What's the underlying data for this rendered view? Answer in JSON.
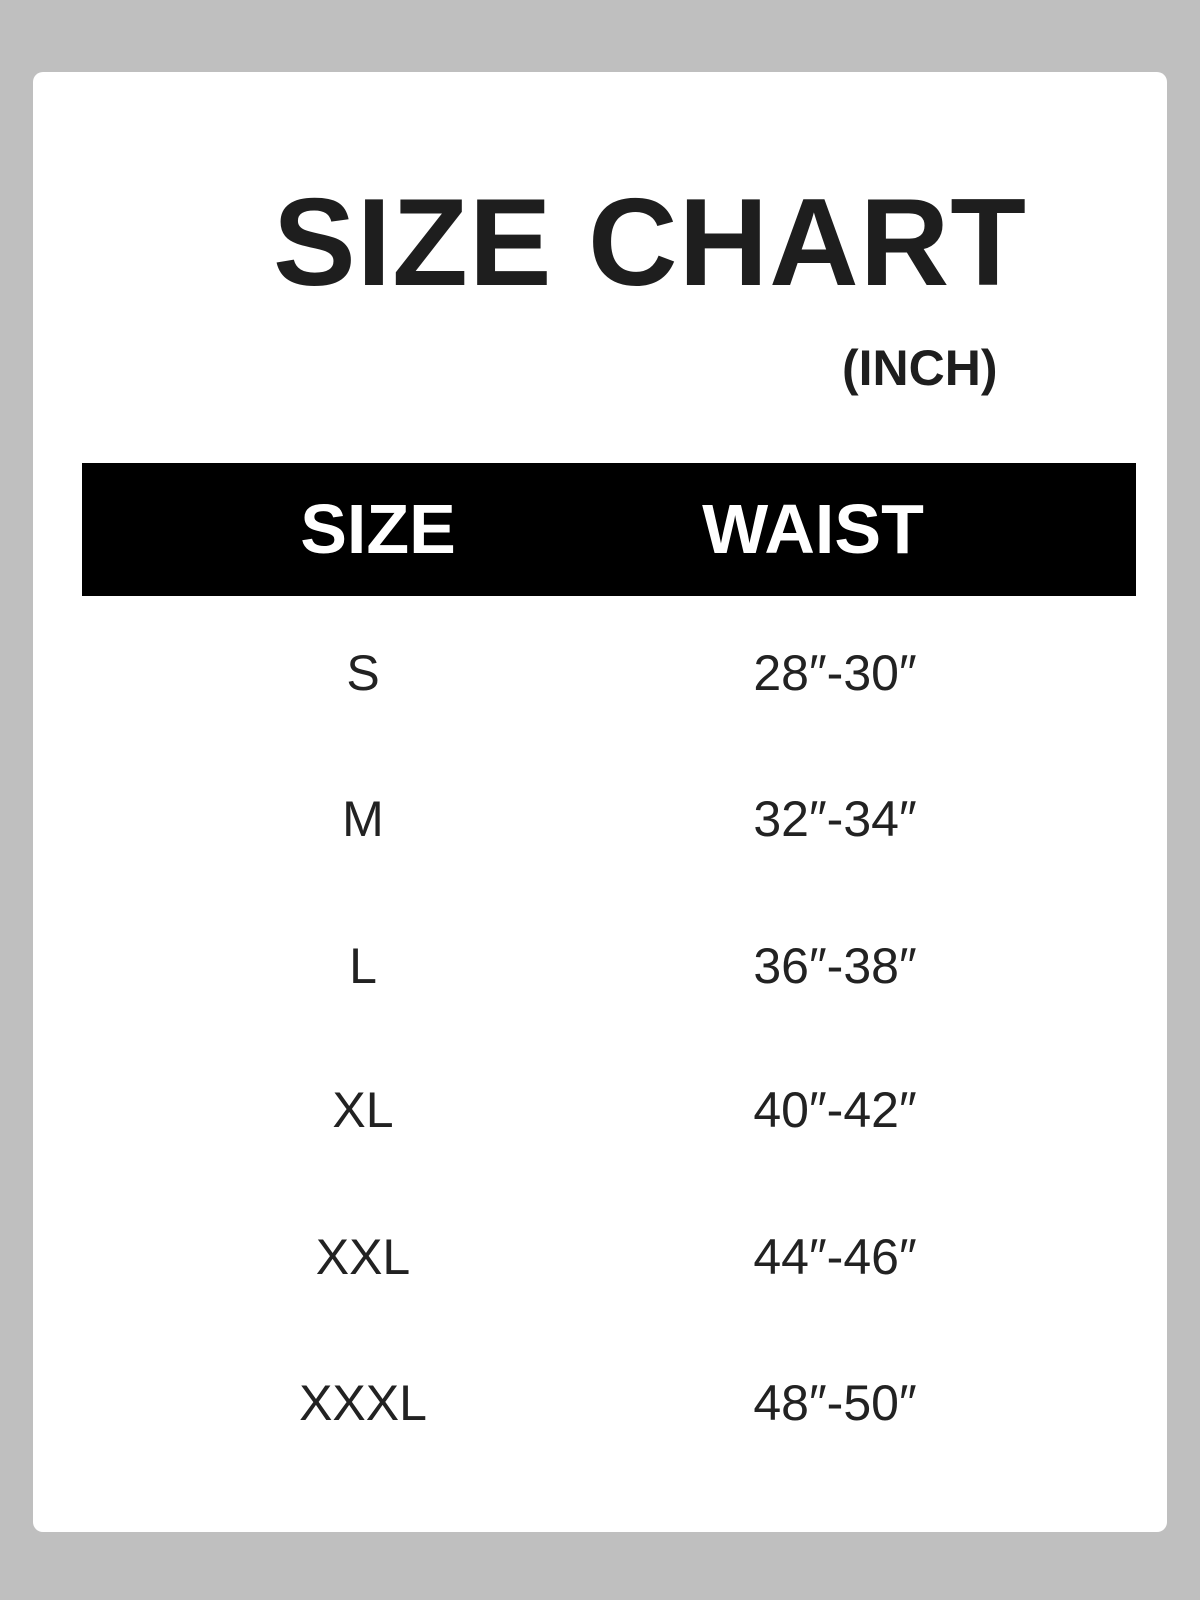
{
  "title": "SIZE CHART",
  "unit": "(INCH)",
  "table": {
    "headers": [
      "SIZE",
      "WAIST"
    ],
    "rows": [
      [
        "S",
        "28″-30″"
      ],
      [
        "M",
        "32″-34″"
      ],
      [
        "L",
        "36″-38″"
      ],
      [
        "XL",
        "40″-42″"
      ],
      [
        "XXL",
        "44″-46″"
      ],
      [
        "XXXL",
        "48″-50″"
      ]
    ]
  },
  "colors": {
    "background": "#bfbfbf",
    "card": "#ffffff",
    "header_band": "#000000",
    "text": "#1e1e1e"
  }
}
